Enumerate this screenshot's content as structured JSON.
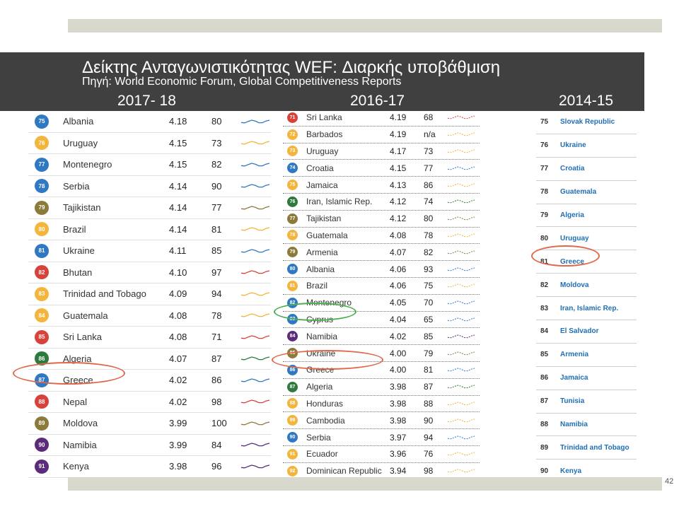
{
  "header": {
    "title": "Δείκτης Ανταγωνιστικότητας WEF: Διαρκής υποβάθμιση",
    "subtitle": "Πηγή: World Economic Forum, Global Competitiveness Reports",
    "col1": "2017- 18",
    "col2": "2016-17",
    "col3": "2014-15"
  },
  "panel1": [
    {
      "rank": "75",
      "country": "Albania",
      "score": "4.18",
      "prev": "80",
      "color": "#2f78c4"
    },
    {
      "rank": "76",
      "country": "Uruguay",
      "score": "4.15",
      "prev": "73",
      "color": "#f3b53b"
    },
    {
      "rank": "77",
      "country": "Montenegro",
      "score": "4.15",
      "prev": "82",
      "color": "#2f78c4"
    },
    {
      "rank": "78",
      "country": "Serbia",
      "score": "4.14",
      "prev": "90",
      "color": "#2f78c4"
    },
    {
      "rank": "79",
      "country": "Tajikistan",
      "score": "4.14",
      "prev": "77",
      "color": "#8c7a3a"
    },
    {
      "rank": "80",
      "country": "Brazil",
      "score": "4.14",
      "prev": "81",
      "color": "#f3b53b"
    },
    {
      "rank": "81",
      "country": "Ukraine",
      "score": "4.11",
      "prev": "85",
      "color": "#2f78c4"
    },
    {
      "rank": "82",
      "country": "Bhutan",
      "score": "4.10",
      "prev": "97",
      "color": "#d9423a"
    },
    {
      "rank": "83",
      "country": "Trinidad and Tobago",
      "score": "4.09",
      "prev": "94",
      "color": "#f3b53b"
    },
    {
      "rank": "84",
      "country": "Guatemala",
      "score": "4.08",
      "prev": "78",
      "color": "#f3b53b"
    },
    {
      "rank": "85",
      "country": "Sri Lanka",
      "score": "4.08",
      "prev": "71",
      "color": "#d9423a"
    },
    {
      "rank": "86",
      "country": "Algeria",
      "score": "4.07",
      "prev": "87",
      "color": "#2e7a3e"
    },
    {
      "rank": "87",
      "country": "Greece",
      "score": "4.02",
      "prev": "86",
      "color": "#2f78c4"
    },
    {
      "rank": "88",
      "country": "Nepal",
      "score": "4.02",
      "prev": "98",
      "color": "#d9423a"
    },
    {
      "rank": "89",
      "country": "Moldova",
      "score": "3.99",
      "prev": "100",
      "color": "#8c7a3a"
    },
    {
      "rank": "90",
      "country": "Namibia",
      "score": "3.99",
      "prev": "84",
      "color": "#5b2a7a"
    },
    {
      "rank": "91",
      "country": "Kenya",
      "score": "3.98",
      "prev": "96",
      "color": "#5b2a7a"
    }
  ],
  "panel2": [
    {
      "rank": "71",
      "country": "Sri Lanka",
      "score": "4.19",
      "prev": "68",
      "color": "#d9423a"
    },
    {
      "rank": "72",
      "country": "Barbados",
      "score": "4.19",
      "prev": "n/a",
      "color": "#f3b53b"
    },
    {
      "rank": "73",
      "country": "Uruguay",
      "score": "4.17",
      "prev": "73",
      "color": "#f3b53b"
    },
    {
      "rank": "74",
      "country": "Croatia",
      "score": "4.15",
      "prev": "77",
      "color": "#2f78c4"
    },
    {
      "rank": "75",
      "country": "Jamaica",
      "score": "4.13",
      "prev": "86",
      "color": "#f3b53b"
    },
    {
      "rank": "76",
      "country": "Iran, Islamic Rep.",
      "score": "4.12",
      "prev": "74",
      "color": "#2e7a3e"
    },
    {
      "rank": "77",
      "country": "Tajikistan",
      "score": "4.12",
      "prev": "80",
      "color": "#8c7a3a"
    },
    {
      "rank": "78",
      "country": "Guatemala",
      "score": "4.08",
      "prev": "78",
      "color": "#f3b53b"
    },
    {
      "rank": "79",
      "country": "Armenia",
      "score": "4.07",
      "prev": "82",
      "color": "#8c7a3a"
    },
    {
      "rank": "80",
      "country": "Albania",
      "score": "4.06",
      "prev": "93",
      "color": "#2f78c4"
    },
    {
      "rank": "81",
      "country": "Brazil",
      "score": "4.06",
      "prev": "75",
      "color": "#f3b53b"
    },
    {
      "rank": "82",
      "country": "Montenegro",
      "score": "4.05",
      "prev": "70",
      "color": "#2f78c4"
    },
    {
      "rank": "83",
      "country": "Cyprus",
      "score": "4.04",
      "prev": "65",
      "color": "#2f78c4"
    },
    {
      "rank": "84",
      "country": "Namibia",
      "score": "4.02",
      "prev": "85",
      "color": "#5b2a7a"
    },
    {
      "rank": "85",
      "country": "Ukraine",
      "score": "4.00",
      "prev": "79",
      "color": "#8c7a3a"
    },
    {
      "rank": "86",
      "country": "Greece",
      "score": "4.00",
      "prev": "81",
      "color": "#2f78c4"
    },
    {
      "rank": "87",
      "country": "Algeria",
      "score": "3.98",
      "prev": "87",
      "color": "#2e7a3e"
    },
    {
      "rank": "88",
      "country": "Honduras",
      "score": "3.98",
      "prev": "88",
      "color": "#f3b53b"
    },
    {
      "rank": "89",
      "country": "Cambodia",
      "score": "3.98",
      "prev": "90",
      "color": "#f3b53b"
    },
    {
      "rank": "90",
      "country": "Serbia",
      "score": "3.97",
      "prev": "94",
      "color": "#2f78c4"
    },
    {
      "rank": "91",
      "country": "Ecuador",
      "score": "3.96",
      "prev": "76",
      "color": "#f3b53b"
    },
    {
      "rank": "92",
      "country": "Dominican Republic",
      "score": "3.94",
      "prev": "98",
      "color": "#f3b53b"
    }
  ],
  "panel3": [
    {
      "rank": "75",
      "country": "Slovak Republic"
    },
    {
      "rank": "76",
      "country": "Ukraine"
    },
    {
      "rank": "77",
      "country": "Croatia"
    },
    {
      "rank": "78",
      "country": "Guatemala"
    },
    {
      "rank": "79",
      "country": "Algeria"
    },
    {
      "rank": "80",
      "country": "Uruguay"
    },
    {
      "rank": "81",
      "country": "Greece"
    },
    {
      "rank": "82",
      "country": "Moldova"
    },
    {
      "rank": "83",
      "country": "Iran, Islamic Rep."
    },
    {
      "rank": "84",
      "country": "El Salvador"
    },
    {
      "rank": "85",
      "country": "Armenia"
    },
    {
      "rank": "86",
      "country": "Jamaica"
    },
    {
      "rank": "87",
      "country": "Tunisia"
    },
    {
      "rank": "88",
      "country": "Namibia"
    },
    {
      "rank": "89",
      "country": "Trinidad and Tobago"
    },
    {
      "rank": "90",
      "country": "Kenya"
    }
  ],
  "page_number": "42"
}
